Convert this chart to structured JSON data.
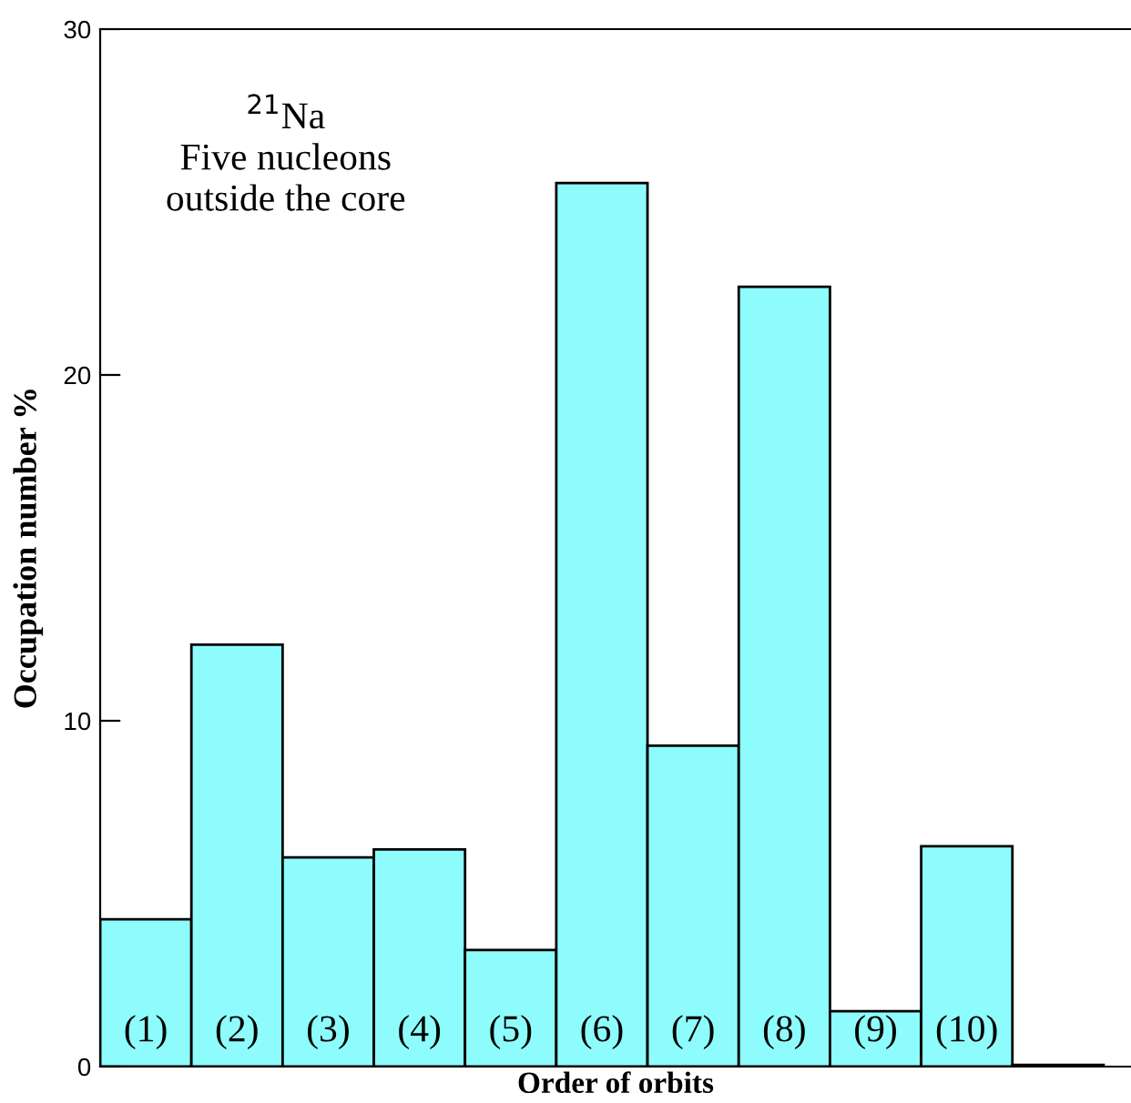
{
  "chart_data": {
    "type": "bar",
    "title": "$^{21}$Na\nFive nucleons\noutside the core",
    "xlabel": "Order of orbits",
    "ylabel": "Occupation number %",
    "categories": [
      "(1)",
      "(2)",
      "(3)",
      "(4)",
      "(5)",
      "(6)",
      "(7)",
      "(8)",
      "(9)",
      "(10)",
      null
    ],
    "values": [
      4.26,
      12.2,
      6.05,
      6.28,
      3.37,
      25.55,
      9.28,
      22.55,
      1.6,
      6.37,
      0.05
    ],
    "color": "#8efcfc",
    "ylim": [
      0,
      30
    ],
    "yticks": [
      0,
      10,
      20,
      30
    ],
    "grid": false
  }
}
